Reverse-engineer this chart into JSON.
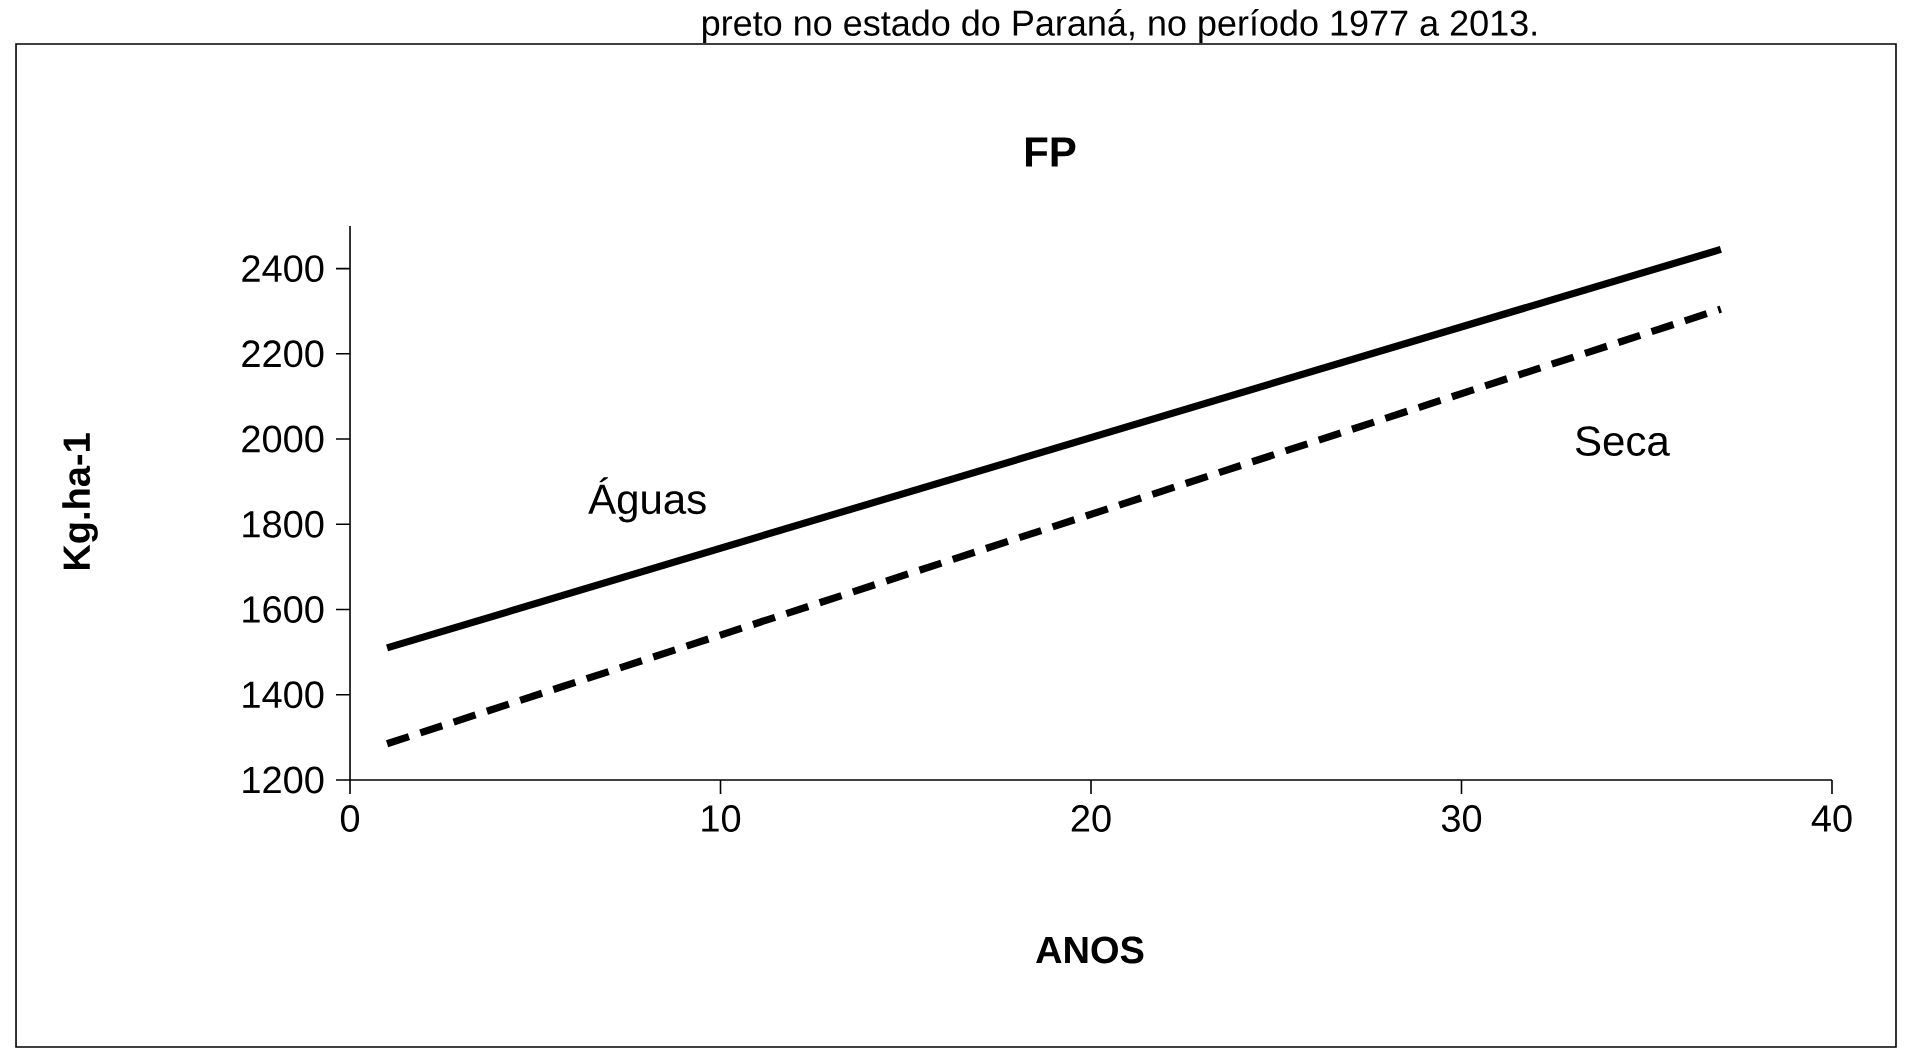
{
  "chart_data": {
    "type": "line",
    "title": "FP",
    "xlabel": "ANOS",
    "ylabel": "Kg.ha-1",
    "annotations": [
      "preto no estado do Paraná, no período 1977 a 2013."
    ],
    "x": [
      1,
      37
    ],
    "series": [
      {
        "name": "Águas",
        "color": "#000000",
        "line_style": "solid",
        "values": [
          1510,
          2445
        ]
      },
      {
        "name": "Seca",
        "color": "#000000",
        "line_style": "dashed",
        "values": [
          1285,
          2305
        ]
      }
    ],
    "xlim": [
      0,
      40
    ],
    "xticks": [
      0,
      10,
      20,
      30,
      40
    ],
    "ylim": [
      1200,
      2500
    ],
    "yticks": [
      1200,
      1400,
      1600,
      1800,
      2000,
      2200,
      2400
    ],
    "grid": false,
    "legend": false,
    "marker": "none"
  }
}
